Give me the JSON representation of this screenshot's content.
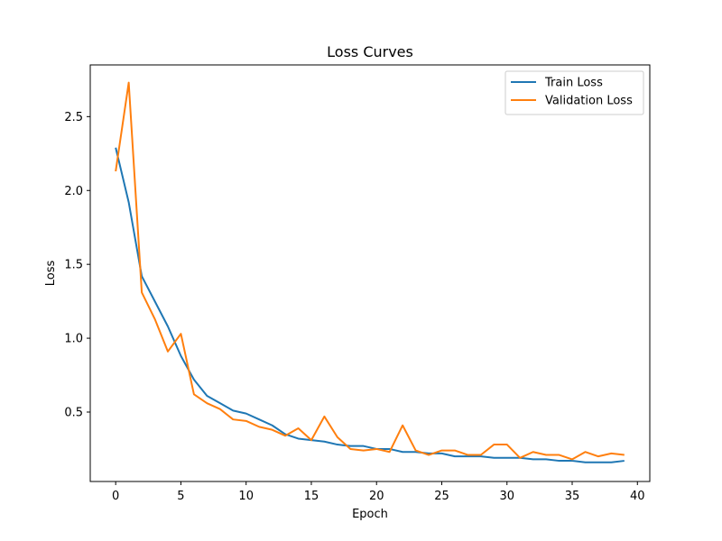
{
  "chart_data": {
    "type": "line",
    "title": "Loss Curves",
    "xlabel": "Epoch",
    "ylabel": "Loss",
    "xlim": [
      -1.95,
      40.95
    ],
    "ylim": [
      0.03,
      2.85
    ],
    "xticks": [
      0,
      5,
      10,
      15,
      20,
      25,
      30,
      35,
      40
    ],
    "yticks": [
      0.5,
      1.0,
      1.5,
      2.0,
      2.5
    ],
    "grid": false,
    "legend_position": "top-right",
    "x": [
      0,
      1,
      2,
      3,
      4,
      5,
      6,
      7,
      8,
      9,
      10,
      11,
      12,
      13,
      14,
      15,
      16,
      17,
      18,
      19,
      20,
      21,
      22,
      23,
      24,
      25,
      26,
      27,
      28,
      29,
      30,
      31,
      32,
      33,
      34,
      35,
      36,
      37,
      38,
      39
    ],
    "series": [
      {
        "name": "Train Loss",
        "color": "#1f77b4",
        "values": [
          2.29,
          1.92,
          1.42,
          1.25,
          1.08,
          0.88,
          0.72,
          0.61,
          0.56,
          0.51,
          0.49,
          0.45,
          0.41,
          0.35,
          0.32,
          0.31,
          0.3,
          0.28,
          0.27,
          0.27,
          0.25,
          0.25,
          0.23,
          0.23,
          0.22,
          0.22,
          0.2,
          0.2,
          0.2,
          0.19,
          0.19,
          0.19,
          0.18,
          0.18,
          0.17,
          0.17,
          0.16,
          0.16,
          0.16,
          0.17
        ]
      },
      {
        "name": "Validation Loss",
        "color": "#ff7f0e",
        "values": [
          2.13,
          2.73,
          1.31,
          1.13,
          0.91,
          1.03,
          0.62,
          0.56,
          0.52,
          0.45,
          0.44,
          0.4,
          0.38,
          0.34,
          0.39,
          0.31,
          0.47,
          0.33,
          0.25,
          0.24,
          0.25,
          0.23,
          0.41,
          0.24,
          0.21,
          0.24,
          0.24,
          0.21,
          0.21,
          0.28,
          0.28,
          0.19,
          0.23,
          0.21,
          0.21,
          0.18,
          0.23,
          0.2,
          0.22,
          0.21
        ]
      }
    ]
  }
}
